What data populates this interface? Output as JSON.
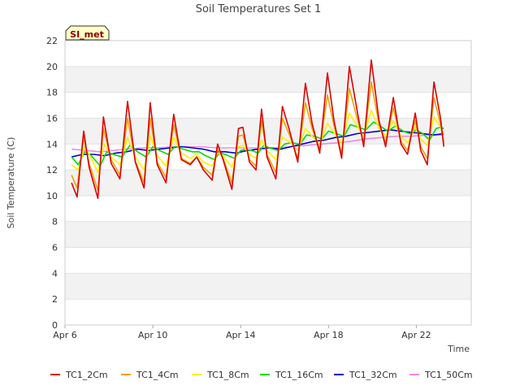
{
  "chart_data": {
    "type": "line",
    "title": "Soil Temperatures Set 1",
    "xlabel": "Time",
    "ylabel": "Soil Temperature (C)",
    "badge": "SI_met",
    "xlim": [
      "Apr 6",
      "Apr 24.5"
    ],
    "ylim": [
      0,
      22
    ],
    "yticks": [
      0,
      2,
      4,
      6,
      8,
      10,
      12,
      14,
      16,
      18,
      20,
      22
    ],
    "xticks": [
      {
        "day": 6,
        "label": "Apr 6"
      },
      {
        "day": 10,
        "label": "Apr 10"
      },
      {
        "day": 14,
        "label": "Apr 14"
      },
      {
        "day": 18,
        "label": "Apr 18"
      },
      {
        "day": 22,
        "label": "Apr 22"
      }
    ],
    "grid": "horizontal bands",
    "legend_position": "bottom",
    "x_units": "day of April",
    "series": [
      {
        "name": "TC1_2Cm",
        "color": "#dd0000",
        "points": [
          [
            6.3,
            11
          ],
          [
            6.55,
            9.9
          ],
          [
            6.85,
            15.0
          ],
          [
            7.1,
            12.2
          ],
          [
            7.5,
            9.8
          ],
          [
            7.75,
            16.1
          ],
          [
            8.1,
            12.5
          ],
          [
            8.5,
            11.3
          ],
          [
            8.85,
            17.3
          ],
          [
            9.2,
            12.6
          ],
          [
            9.6,
            10.6
          ],
          [
            9.88,
            17.2
          ],
          [
            10.2,
            12.4
          ],
          [
            10.6,
            11.0
          ],
          [
            10.95,
            16.3
          ],
          [
            11.3,
            12.8
          ],
          [
            11.7,
            12.4
          ],
          [
            12.0,
            13.0
          ],
          [
            12.3,
            12.0
          ],
          [
            12.7,
            11.2
          ],
          [
            12.95,
            14.0
          ],
          [
            13.2,
            12.8
          ],
          [
            13.6,
            10.5
          ],
          [
            13.9,
            15.2
          ],
          [
            14.1,
            15.3
          ],
          [
            14.4,
            12.6
          ],
          [
            14.7,
            12.0
          ],
          [
            14.95,
            16.7
          ],
          [
            15.2,
            13.0
          ],
          [
            15.6,
            11.3
          ],
          [
            15.9,
            16.9
          ],
          [
            16.2,
            15.2
          ],
          [
            16.6,
            12.6
          ],
          [
            16.95,
            18.7
          ],
          [
            17.25,
            15.6
          ],
          [
            17.6,
            13.3
          ],
          [
            17.95,
            19.5
          ],
          [
            18.25,
            15.8
          ],
          [
            18.6,
            12.9
          ],
          [
            18.95,
            20.0
          ],
          [
            19.3,
            16.6
          ],
          [
            19.6,
            13.8
          ],
          [
            19.95,
            20.5
          ],
          [
            20.3,
            15.8
          ],
          [
            20.6,
            13.8
          ],
          [
            20.95,
            17.6
          ],
          [
            21.3,
            14.0
          ],
          [
            21.6,
            13.2
          ],
          [
            21.95,
            16.4
          ],
          [
            22.2,
            13.5
          ],
          [
            22.5,
            12.4
          ],
          [
            22.8,
            18.8
          ],
          [
            23.1,
            16.0
          ],
          [
            23.25,
            13.8
          ]
        ]
      },
      {
        "name": "TC1_4Cm",
        "color": "#f0a000",
        "points": [
          [
            6.3,
            11.6
          ],
          [
            6.55,
            10.6
          ],
          [
            6.85,
            14.5
          ],
          [
            7.1,
            12.5
          ],
          [
            7.5,
            10.4
          ],
          [
            7.75,
            15.2
          ],
          [
            8.1,
            12.8
          ],
          [
            8.5,
            11.6
          ],
          [
            8.85,
            16.0
          ],
          [
            9.2,
            12.7
          ],
          [
            9.6,
            11.0
          ],
          [
            9.88,
            16.0
          ],
          [
            10.2,
            12.6
          ],
          [
            10.6,
            11.4
          ],
          [
            10.95,
            15.5
          ],
          [
            11.3,
            12.9
          ],
          [
            11.7,
            12.5
          ],
          [
            12.0,
            13.0
          ],
          [
            12.3,
            12.2
          ],
          [
            12.7,
            11.6
          ],
          [
            12.95,
            13.6
          ],
          [
            13.2,
            12.9
          ],
          [
            13.6,
            11.0
          ],
          [
            13.9,
            14.6
          ],
          [
            14.1,
            14.7
          ],
          [
            14.4,
            12.8
          ],
          [
            14.7,
            12.3
          ],
          [
            14.95,
            15.8
          ],
          [
            15.2,
            13.2
          ],
          [
            15.6,
            11.8
          ],
          [
            15.9,
            16.0
          ],
          [
            16.2,
            14.8
          ],
          [
            16.6,
            12.9
          ],
          [
            16.95,
            17.2
          ],
          [
            17.25,
            15.2
          ],
          [
            17.6,
            13.6
          ],
          [
            17.95,
            17.8
          ],
          [
            18.25,
            15.4
          ],
          [
            18.6,
            13.3
          ],
          [
            18.95,
            18.3
          ],
          [
            19.3,
            16.0
          ],
          [
            19.6,
            14.1
          ],
          [
            19.95,
            18.8
          ],
          [
            20.3,
            15.5
          ],
          [
            20.6,
            14.1
          ],
          [
            20.95,
            16.8
          ],
          [
            21.3,
            14.2
          ],
          [
            21.6,
            13.5
          ],
          [
            21.95,
            15.8
          ],
          [
            22.2,
            13.8
          ],
          [
            22.5,
            12.9
          ],
          [
            22.8,
            17.6
          ],
          [
            23.1,
            15.5
          ],
          [
            23.25,
            14.1
          ]
        ]
      },
      {
        "name": "TC1_8Cm",
        "color": "#ffee00",
        "points": [
          [
            6.3,
            12.4
          ],
          [
            6.6,
            12.0
          ],
          [
            6.9,
            13.8
          ],
          [
            7.2,
            12.9
          ],
          [
            7.5,
            11.8
          ],
          [
            7.8,
            14.0
          ],
          [
            8.1,
            13.0
          ],
          [
            8.5,
            12.4
          ],
          [
            8.85,
            14.5
          ],
          [
            9.2,
            13.0
          ],
          [
            9.6,
            12.0
          ],
          [
            9.9,
            14.6
          ],
          [
            10.2,
            13.1
          ],
          [
            10.6,
            12.3
          ],
          [
            10.95,
            14.5
          ],
          [
            11.3,
            13.3
          ],
          [
            11.7,
            12.9
          ],
          [
            12.0,
            13.2
          ],
          [
            12.3,
            12.6
          ],
          [
            12.7,
            12.3
          ],
          [
            12.95,
            13.3
          ],
          [
            13.2,
            13.1
          ],
          [
            13.6,
            12.2
          ],
          [
            13.9,
            13.8
          ],
          [
            14.1,
            13.9
          ],
          [
            14.4,
            13.2
          ],
          [
            14.7,
            12.9
          ],
          [
            14.95,
            14.3
          ],
          [
            15.2,
            13.5
          ],
          [
            15.6,
            12.8
          ],
          [
            15.9,
            14.5
          ],
          [
            16.2,
            14.2
          ],
          [
            16.6,
            13.5
          ],
          [
            16.95,
            15.2
          ],
          [
            17.25,
            14.6
          ],
          [
            17.6,
            14.0
          ],
          [
            17.95,
            15.6
          ],
          [
            18.25,
            14.9
          ],
          [
            18.6,
            14.0
          ],
          [
            18.95,
            16.4
          ],
          [
            19.3,
            15.4
          ],
          [
            19.6,
            14.6
          ],
          [
            19.95,
            16.6
          ],
          [
            20.3,
            15.2
          ],
          [
            20.6,
            14.6
          ],
          [
            20.95,
            15.8
          ],
          [
            21.3,
            14.6
          ],
          [
            21.6,
            14.1
          ],
          [
            21.95,
            15.3
          ],
          [
            22.2,
            14.4
          ],
          [
            22.5,
            13.9
          ],
          [
            22.8,
            16.1
          ],
          [
            23.1,
            15.3
          ],
          [
            23.25,
            14.8
          ]
        ]
      },
      {
        "name": "TC1_16Cm",
        "color": "#00dd00",
        "points": [
          [
            6.3,
            13.0
          ],
          [
            6.6,
            12.4
          ],
          [
            6.9,
            13.4
          ],
          [
            7.2,
            13.1
          ],
          [
            7.6,
            12.3
          ],
          [
            7.9,
            13.4
          ],
          [
            8.2,
            13.2
          ],
          [
            8.6,
            13.0
          ],
          [
            8.95,
            13.9
          ],
          [
            9.3,
            13.4
          ],
          [
            9.7,
            13.0
          ],
          [
            10.0,
            13.8
          ],
          [
            10.3,
            13.5
          ],
          [
            10.7,
            13.2
          ],
          [
            11.0,
            13.8
          ],
          [
            11.4,
            13.6
          ],
          [
            11.8,
            13.4
          ],
          [
            12.1,
            13.4
          ],
          [
            12.4,
            13.1
          ],
          [
            12.8,
            12.8
          ],
          [
            13.05,
            13.3
          ],
          [
            13.3,
            13.2
          ],
          [
            13.7,
            12.9
          ],
          [
            14.0,
            13.5
          ],
          [
            14.2,
            13.6
          ],
          [
            14.5,
            13.5
          ],
          [
            14.8,
            13.3
          ],
          [
            15.05,
            13.9
          ],
          [
            15.3,
            13.7
          ],
          [
            15.7,
            13.5
          ],
          [
            16.0,
            14.0
          ],
          [
            16.3,
            14.1
          ],
          [
            16.7,
            14.0
          ],
          [
            17.0,
            14.7
          ],
          [
            17.35,
            14.6
          ],
          [
            17.7,
            14.4
          ],
          [
            18.0,
            15.0
          ],
          [
            18.35,
            14.8
          ],
          [
            18.7,
            14.6
          ],
          [
            19.0,
            15.5
          ],
          [
            19.35,
            15.3
          ],
          [
            19.7,
            15.1
          ],
          [
            20.05,
            15.7
          ],
          [
            20.35,
            15.4
          ],
          [
            20.7,
            15.0
          ],
          [
            21.05,
            15.4
          ],
          [
            21.4,
            15.0
          ],
          [
            21.7,
            14.8
          ],
          [
            22.0,
            15.1
          ],
          [
            22.3,
            14.8
          ],
          [
            22.6,
            14.3
          ],
          [
            22.9,
            15.2
          ],
          [
            23.1,
            15.3
          ],
          [
            23.25,
            15.2
          ]
        ]
      },
      {
        "name": "TC1_32Cm",
        "color": "#0000cc",
        "points": [
          [
            6.3,
            13.0
          ],
          [
            6.8,
            13.2
          ],
          [
            7.3,
            13.2
          ],
          [
            7.8,
            13.1
          ],
          [
            8.3,
            13.3
          ],
          [
            8.8,
            13.4
          ],
          [
            9.3,
            13.6
          ],
          [
            9.8,
            13.5
          ],
          [
            10.3,
            13.6
          ],
          [
            10.8,
            13.7
          ],
          [
            11.3,
            13.8
          ],
          [
            11.8,
            13.7
          ],
          [
            12.3,
            13.6
          ],
          [
            12.8,
            13.4
          ],
          [
            13.3,
            13.4
          ],
          [
            13.8,
            13.3
          ],
          [
            14.3,
            13.5
          ],
          [
            14.8,
            13.6
          ],
          [
            15.3,
            13.7
          ],
          [
            15.8,
            13.6
          ],
          [
            16.3,
            13.8
          ],
          [
            16.8,
            14.0
          ],
          [
            17.3,
            14.2
          ],
          [
            17.8,
            14.3
          ],
          [
            18.3,
            14.5
          ],
          [
            18.8,
            14.6
          ],
          [
            19.3,
            14.8
          ],
          [
            19.8,
            14.9
          ],
          [
            20.3,
            15.0
          ],
          [
            20.8,
            15.1
          ],
          [
            21.3,
            15.0
          ],
          [
            21.8,
            14.9
          ],
          [
            22.3,
            14.8
          ],
          [
            22.8,
            14.7
          ],
          [
            23.25,
            14.8
          ]
        ]
      },
      {
        "name": "TC1_50Cm",
        "color": "#ee88ee",
        "points": [
          [
            6.3,
            13.6
          ],
          [
            7.0,
            13.5
          ],
          [
            7.6,
            13.4
          ],
          [
            8.2,
            13.5
          ],
          [
            8.8,
            13.6
          ],
          [
            9.5,
            13.7
          ],
          [
            10.2,
            13.7
          ],
          [
            10.9,
            13.8
          ],
          [
            11.5,
            13.8
          ],
          [
            12.2,
            13.8
          ],
          [
            12.9,
            13.7
          ],
          [
            13.6,
            13.7
          ],
          [
            14.3,
            13.7
          ],
          [
            15.0,
            13.7
          ],
          [
            15.6,
            13.7
          ],
          [
            16.3,
            13.8
          ],
          [
            17.0,
            13.9
          ],
          [
            17.7,
            14.0
          ],
          [
            18.4,
            14.1
          ],
          [
            19.0,
            14.2
          ],
          [
            19.7,
            14.4
          ],
          [
            20.4,
            14.5
          ],
          [
            21.1,
            14.6
          ],
          [
            21.8,
            14.6
          ],
          [
            22.5,
            14.7
          ],
          [
            23.25,
            14.7
          ]
        ]
      }
    ]
  }
}
